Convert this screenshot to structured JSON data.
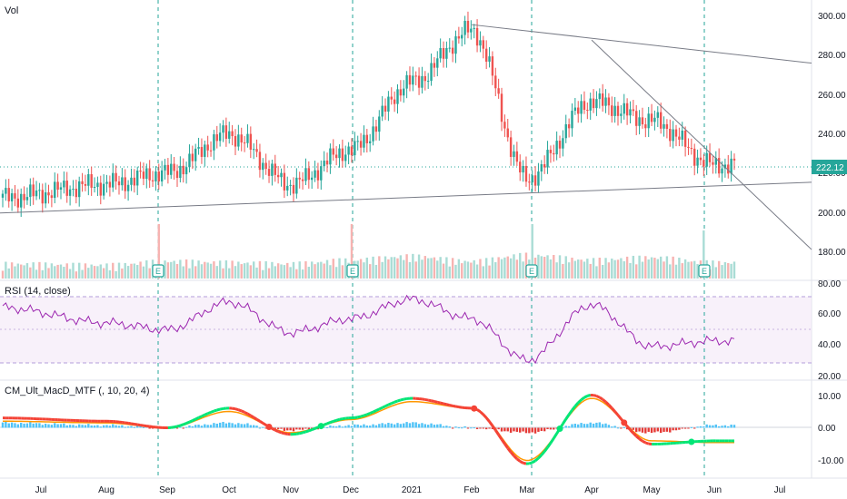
{
  "panes": {
    "price": {
      "label": "Vol",
      "ticks": [
        "300.00",
        "280.00",
        "260.00",
        "240.00",
        "220.00",
        "200.00",
        "180.00"
      ]
    },
    "rsi": {
      "label": "RSI (14, close)",
      "ticks": [
        "80.00",
        "60.00",
        "40.00",
        "20.00"
      ]
    },
    "macd": {
      "label": "CM_Ult_MacD_MTF (, 10, 20, 4)",
      "ticks": [
        "10.00",
        "0.00",
        "-10.00"
      ]
    }
  },
  "price_label": {
    "value": "222.12",
    "color": "#26a69a"
  },
  "x_axis": {
    "labels": [
      "Jul",
      "Aug",
      "Sep",
      "Oct",
      "Nov",
      "Dec",
      "2021",
      "Feb",
      "Mar",
      "Apr",
      "May",
      "Jun",
      "Jul"
    ]
  },
  "earnings_badge": "E",
  "chart_data": [
    {
      "type": "candlestick",
      "pane": "price",
      "ylim": [
        170,
        305
      ],
      "x": [
        "Jul",
        "Aug",
        "Sep",
        "Oct",
        "Nov",
        "Dec",
        "2021",
        "Feb",
        "Mar",
        "Apr",
        "May",
        "Jun"
      ],
      "close": [
        205,
        212,
        218,
        238,
        212,
        230,
        265,
        292,
        215,
        255,
        245,
        222
      ],
      "last_close": 222.12,
      "colors": {
        "up": "#26a69a",
        "down": "#ef5350"
      },
      "trendlines": [
        {
          "from": [
            "start",
            197
          ],
          "to": [
            "end",
            213
          ]
        },
        {
          "from": [
            "Feb",
            295
          ],
          "to": [
            "end",
            275
          ]
        },
        {
          "from": [
            "Apr",
            287
          ],
          "to": [
            "end",
            178
          ]
        }
      ],
      "earnings_markers": [
        "Sep",
        "Dec",
        "Mar",
        "May"
      ]
    },
    {
      "type": "bar",
      "pane": "price",
      "name": "Vol",
      "x": [
        "Jul",
        "Aug",
        "Sep",
        "Oct",
        "Nov",
        "Dec",
        "2021",
        "Feb",
        "Mar",
        "Apr",
        "May",
        "Jun"
      ],
      "values": [
        30,
        25,
        40,
        35,
        30,
        45,
        60,
        40,
        65,
        45,
        55,
        35
      ]
    },
    {
      "type": "line",
      "pane": "rsi",
      "name": "RSI (14, close)",
      "ylim": [
        15,
        85
      ],
      "bands": [
        30,
        70
      ],
      "color": "#9c27b0",
      "x": [
        "Jul",
        "Aug",
        "Sep",
        "Oct",
        "Nov",
        "Dec",
        "2021",
        "Feb",
        "Mar",
        "Apr",
        "May",
        "Jun"
      ],
      "values": [
        66,
        55,
        50,
        70,
        48,
        58,
        72,
        58,
        28,
        68,
        38,
        42
      ]
    },
    {
      "type": "line",
      "pane": "macd",
      "name": "CM_Ult_MacD_MTF (, 10, 20, 4)",
      "ylim": [
        -14,
        14
      ],
      "x": [
        "Jul",
        "Aug",
        "Sep",
        "Oct",
        "Nov",
        "Dec",
        "2021",
        "Feb",
        "Mar",
        "Apr",
        "May",
        "Jun"
      ],
      "macd": [
        3,
        2,
        0,
        6,
        -2,
        3,
        9,
        6,
        -11,
        10,
        -5,
        -4
      ],
      "signal": [
        2,
        1.5,
        0,
        5,
        -1.5,
        2.5,
        8,
        6,
        -10,
        9,
        -4,
        -4.5
      ]
    }
  ]
}
